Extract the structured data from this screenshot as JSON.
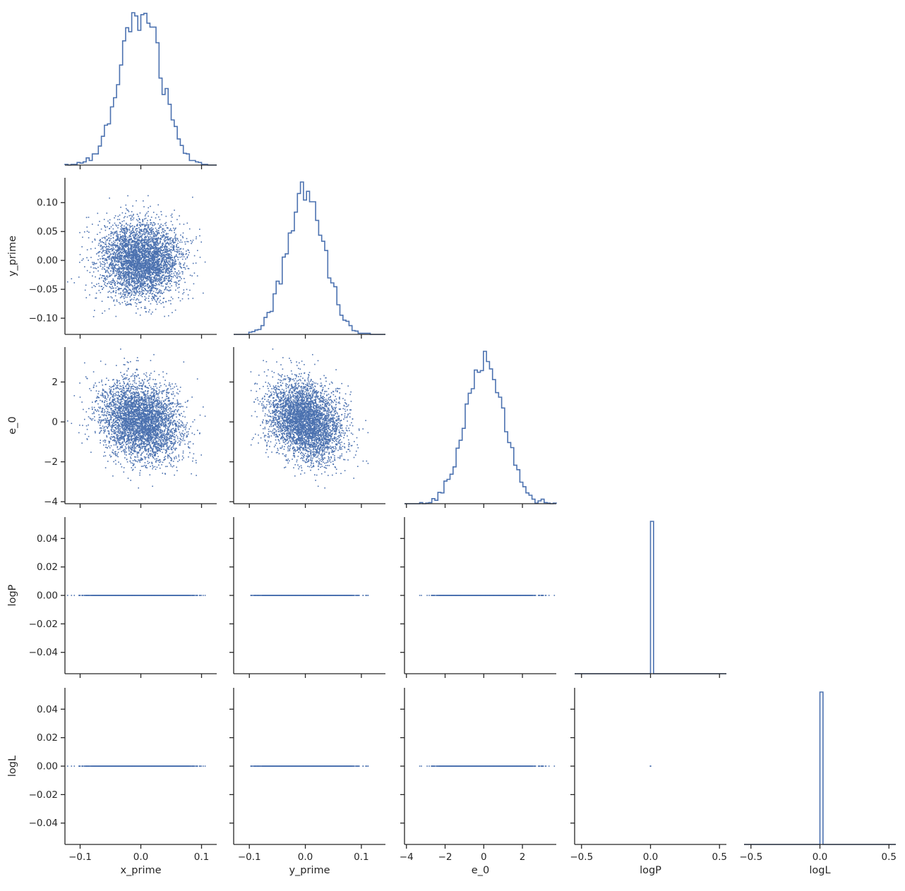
{
  "chart_data": {
    "type": "pairplot",
    "variables": [
      {
        "name": "x_prime",
        "label": "x_prime",
        "lim": [
          -0.125,
          0.125
        ],
        "ticks": [
          -0.1,
          0.0,
          0.1
        ],
        "tick_labels": [
          "−0.1",
          "0.0",
          "0.1"
        ],
        "mean": 0.0,
        "std": 0.033
      },
      {
        "name": "y_prime",
        "label": "y_prime",
        "lim": [
          -0.128,
          0.143
        ],
        "ticks": [
          -0.1,
          -0.05,
          0.0,
          0.05,
          0.1
        ],
        "tick_labels": [
          "−0.10",
          "−0.05",
          "0.00",
          "0.05",
          "0.10"
        ],
        "x_ticks": [
          -0.1,
          0.0,
          0.1
        ],
        "x_tick_labels": [
          "−0.1",
          "0.0",
          "0.1"
        ],
        "mean": 0.0,
        "std": 0.033
      },
      {
        "name": "e_0",
        "label": "e_0",
        "lim": [
          -4.1,
          3.75
        ],
        "ticks": [
          -4,
          -2,
          0,
          2
        ],
        "tick_labels": [
          "−4",
          "−2",
          "0",
          "2"
        ],
        "mean": 0.05,
        "std": 1.0
      },
      {
        "name": "logP",
        "label": "logP",
        "lim": [
          -0.055,
          0.055
        ],
        "ticks": [
          -0.04,
          -0.02,
          0.0,
          0.02,
          0.04
        ],
        "tick_labels": [
          "−0.04",
          "−0.02",
          "0.00",
          "0.02",
          "0.04"
        ],
        "x_lim": [
          -0.55,
          0.55
        ],
        "x_ticks": [
          -0.5,
          0.0,
          0.5
        ],
        "x_tick_labels": [
          "−0.5",
          "0.0",
          "0.5"
        ],
        "constant": 0.0
      },
      {
        "name": "logL",
        "label": "logL",
        "lim": [
          -0.055,
          0.055
        ],
        "ticks": [
          -0.04,
          -0.02,
          0.0,
          0.02,
          0.04
        ],
        "tick_labels": [
          "−0.04",
          "−0.02",
          "0.00",
          "0.02",
          "0.04"
        ],
        "x_lim": [
          -0.55,
          0.55
        ],
        "x_ticks": [
          -0.5,
          0.0,
          0.5
        ],
        "x_tick_labels": [
          "−0.5",
          "0.0",
          "0.5"
        ],
        "constant": 0.0
      }
    ],
    "diagonal": "histogram (step)",
    "lower": "scatter",
    "corner": true,
    "n_samples": 4000,
    "bins": 50,
    "series_color": "#4c72b0",
    "grid": false
  }
}
